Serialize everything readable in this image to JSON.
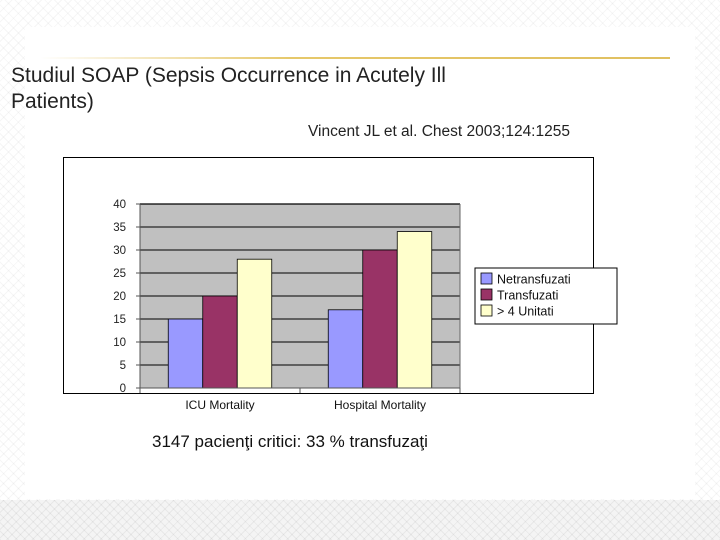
{
  "slide": {
    "title": "Studiul SOAP (Sepsis Occurrence in Acutely Ill Patients)",
    "citation": "Vincent JL et al. Chest 2003;124:1255",
    "footer": "3147 pacienţi critici: 33 % transfuzaţi"
  },
  "colors": {
    "plot_area": "#c0c0c0",
    "bar_border": "#000000"
  },
  "chart_data": {
    "type": "bar",
    "categories": [
      "ICU Mortality",
      "Hospital Mortality"
    ],
    "series": [
      {
        "name": "Netransfuzati",
        "values": [
          15,
          17
        ],
        "color": "#9999ff"
      },
      {
        "name": "Transfuzati",
        "values": [
          20,
          30
        ],
        "color": "#993366"
      },
      {
        "name": "> 4 Unitati",
        "values": [
          28,
          34
        ],
        "color": "#ffffcc"
      }
    ],
    "ylim": [
      0,
      40
    ],
    "yticks": [
      0,
      5,
      10,
      15,
      20,
      25,
      30,
      35,
      40
    ],
    "xlabel": "",
    "ylabel": "",
    "grid": true,
    "legend": "right"
  }
}
